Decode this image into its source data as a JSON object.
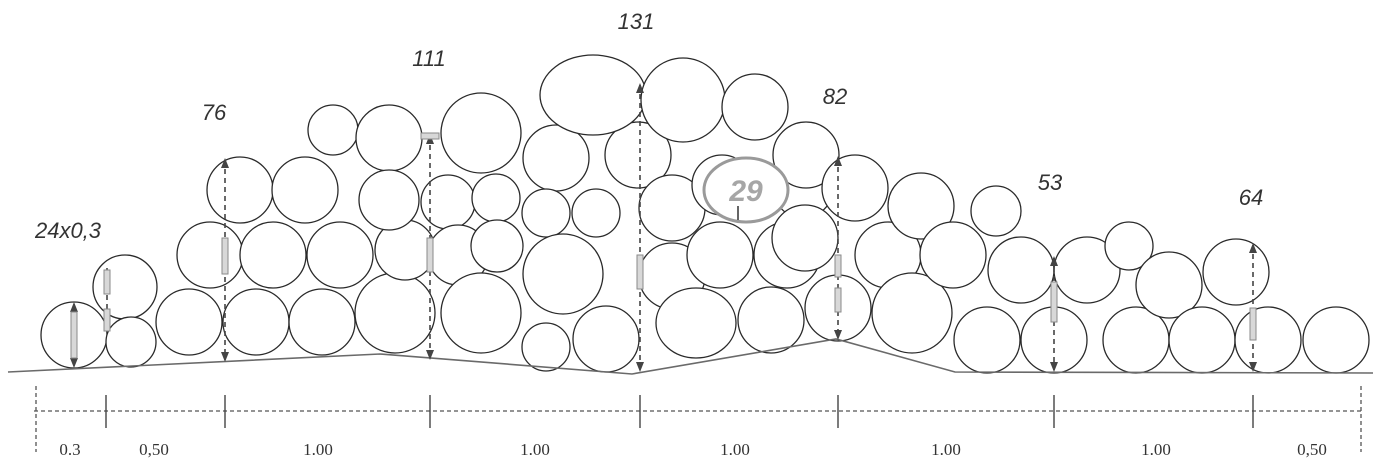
{
  "diagram": {
    "height_labels": [
      "24x0,3",
      "76",
      "111",
      "131",
      "82",
      "53",
      "64"
    ],
    "segment_labels": [
      "0.3",
      "0,50",
      "1.00",
      "1.00",
      "1.00",
      "1.00",
      "1.00",
      "0,50"
    ],
    "log_count_badge": "29"
  }
}
